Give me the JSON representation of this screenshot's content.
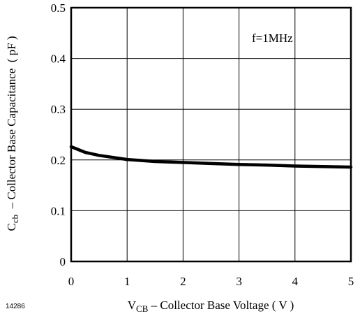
{
  "figure_id": "14286",
  "chart_data": {
    "type": "line",
    "annotation": "f=1MHz",
    "xlabel": {
      "main": "V",
      "sub": "CB",
      "rest": " – Collector Base Voltage ( V )"
    },
    "ylabel": {
      "main": "C",
      "sub": "cb",
      "rest": "  – Collector Base Capacitance  ( pF )"
    },
    "xlim": [
      0,
      5
    ],
    "ylim": [
      0,
      0.5
    ],
    "xticks": [
      "0",
      "1",
      "2",
      "3",
      "4",
      "5"
    ],
    "yticks": [
      "0",
      "0.1",
      "0.2",
      "0.3",
      "0.4",
      "0.5"
    ],
    "grid": true,
    "series": [
      {
        "x": [
          0,
          0.25,
          0.5,
          0.75,
          1.0,
          1.5,
          2.0,
          2.5,
          3.0,
          3.5,
          4.0,
          4.5,
          5.0
        ],
        "y": [
          0.226,
          0.215,
          0.209,
          0.205,
          0.201,
          0.197,
          0.195,
          0.193,
          0.191,
          0.19,
          0.188,
          0.187,
          0.186
        ]
      }
    ]
  }
}
